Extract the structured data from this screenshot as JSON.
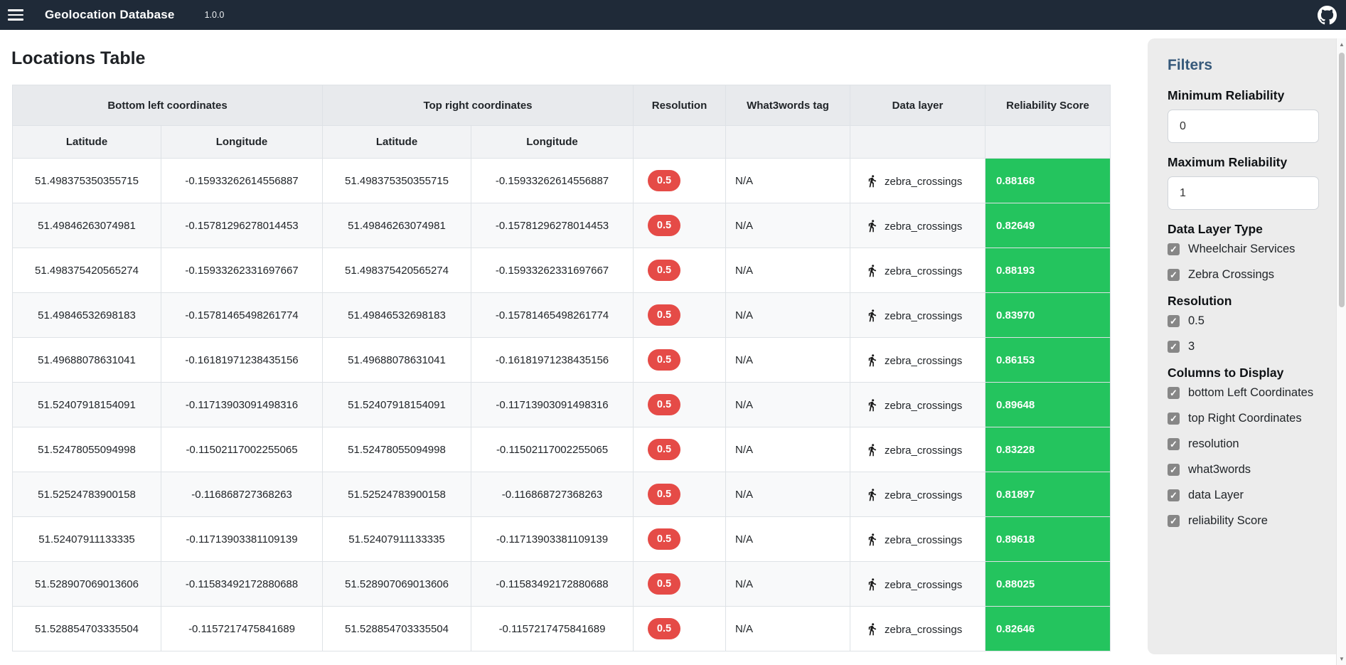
{
  "colors": {
    "navbar_bg": "#1f2a38",
    "badge_red": "#e54b47",
    "score_green": "#24c45e",
    "accent_blue": "#36597a"
  },
  "navbar": {
    "title": "Geolocation Database",
    "version": "1.0.0"
  },
  "page": {
    "title": "Locations Table"
  },
  "table": {
    "group_headers": {
      "bottom_left": "Bottom left coordinates",
      "top_right": "Top right coordinates",
      "resolution": "Resolution",
      "what3words": "What3words tag",
      "data_layer": "Data layer",
      "reliability": "Reliability Score"
    },
    "sub_headers": {
      "latitude": "Latitude",
      "longitude": "Longitude"
    },
    "rows": [
      {
        "bl_lat": "51.498375350355715",
        "bl_lng": "-0.15933262614556887",
        "tr_lat": "51.498375350355715",
        "tr_lng": "-0.15933262614556887",
        "resolution": "0.5",
        "what3words": "N/A",
        "data_layer": "zebra_crossings",
        "score": "0.88168"
      },
      {
        "bl_lat": "51.49846263074981",
        "bl_lng": "-0.15781296278014453",
        "tr_lat": "51.49846263074981",
        "tr_lng": "-0.15781296278014453",
        "resolution": "0.5",
        "what3words": "N/A",
        "data_layer": "zebra_crossings",
        "score": "0.82649"
      },
      {
        "bl_lat": "51.498375420565274",
        "bl_lng": "-0.15933262331697667",
        "tr_lat": "51.498375420565274",
        "tr_lng": "-0.15933262331697667",
        "resolution": "0.5",
        "what3words": "N/A",
        "data_layer": "zebra_crossings",
        "score": "0.88193"
      },
      {
        "bl_lat": "51.49846532698183",
        "bl_lng": "-0.15781465498261774",
        "tr_lat": "51.49846532698183",
        "tr_lng": "-0.15781465498261774",
        "resolution": "0.5",
        "what3words": "N/A",
        "data_layer": "zebra_crossings",
        "score": "0.83970"
      },
      {
        "bl_lat": "51.49688078631041",
        "bl_lng": "-0.16181971238435156",
        "tr_lat": "51.49688078631041",
        "tr_lng": "-0.16181971238435156",
        "resolution": "0.5",
        "what3words": "N/A",
        "data_layer": "zebra_crossings",
        "score": "0.86153"
      },
      {
        "bl_lat": "51.52407918154091",
        "bl_lng": "-0.11713903091498316",
        "tr_lat": "51.52407918154091",
        "tr_lng": "-0.11713903091498316",
        "resolution": "0.5",
        "what3words": "N/A",
        "data_layer": "zebra_crossings",
        "score": "0.89648"
      },
      {
        "bl_lat": "51.52478055094998",
        "bl_lng": "-0.11502117002255065",
        "tr_lat": "51.52478055094998",
        "tr_lng": "-0.11502117002255065",
        "resolution": "0.5",
        "what3words": "N/A",
        "data_layer": "zebra_crossings",
        "score": "0.83228"
      },
      {
        "bl_lat": "51.52524783900158",
        "bl_lng": "-0.116868727368263",
        "tr_lat": "51.52524783900158",
        "tr_lng": "-0.116868727368263",
        "resolution": "0.5",
        "what3words": "N/A",
        "data_layer": "zebra_crossings",
        "score": "0.81897"
      },
      {
        "bl_lat": "51.52407911133335",
        "bl_lng": "-0.11713903381109139",
        "tr_lat": "51.52407911133335",
        "tr_lng": "-0.11713903381109139",
        "resolution": "0.5",
        "what3words": "N/A",
        "data_layer": "zebra_crossings",
        "score": "0.89618"
      },
      {
        "bl_lat": "51.528907069013606",
        "bl_lng": "-0.11583492172880688",
        "tr_lat": "51.528907069013606",
        "tr_lng": "-0.11583492172880688",
        "resolution": "0.5",
        "what3words": "N/A",
        "data_layer": "zebra_crossings",
        "score": "0.88025"
      },
      {
        "bl_lat": "51.528854703335504",
        "bl_lng": "-0.1157217475841689",
        "tr_lat": "51.528854703335504",
        "tr_lng": "-0.1157217475841689",
        "resolution": "0.5",
        "what3words": "N/A",
        "data_layer": "zebra_crossings",
        "score": "0.82646"
      }
    ]
  },
  "sidebar": {
    "title": "Filters",
    "min_reliability": {
      "label": "Minimum Reliability",
      "value": "0"
    },
    "max_reliability": {
      "label": "Maximum Reliability",
      "value": "1"
    },
    "sections": [
      {
        "title": "Data Layer Type",
        "items": [
          {
            "label": "Wheelchair Services",
            "checked": true
          },
          {
            "label": "Zebra Crossings",
            "checked": true
          }
        ]
      },
      {
        "title": "Resolution",
        "items": [
          {
            "label": "0.5",
            "checked": true
          },
          {
            "label": "3",
            "checked": true
          }
        ]
      },
      {
        "title": "Columns to Display",
        "items": [
          {
            "label": "bottom Left Coordinates",
            "checked": true
          },
          {
            "label": "top Right Coordinates",
            "checked": true
          },
          {
            "label": "resolution",
            "checked": true
          },
          {
            "label": "what3words",
            "checked": true
          },
          {
            "label": "data Layer",
            "checked": true
          },
          {
            "label": "reliability Score",
            "checked": true
          }
        ]
      }
    ]
  }
}
